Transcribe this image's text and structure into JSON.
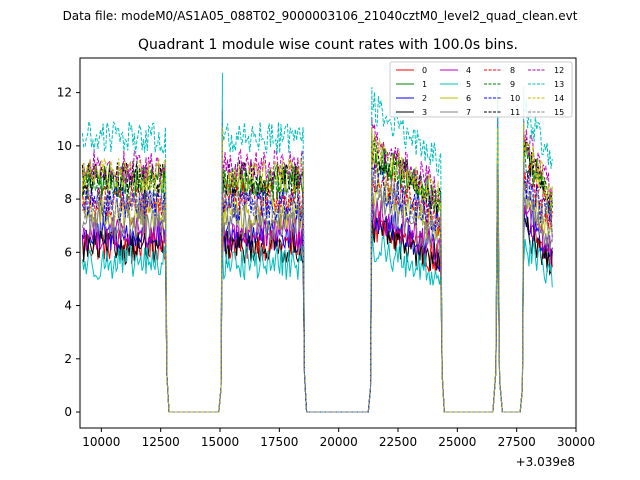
{
  "header": {
    "data_file_text": "Data file: modeM0/AS1A05_088T02_9000003106_21040cztM0_level2_quad_clean.evt"
  },
  "chart_data": {
    "type": "line",
    "title": "Quadrant 1 module wise count rates with 100.0s bins.",
    "xlabel": "",
    "ylabel": "",
    "x_offset_label": "+3.039e8",
    "xlim": [
      9100,
      30000
    ],
    "ylim": [
      -0.6,
      13.3
    ],
    "x_ticks": [
      10000,
      12500,
      15000,
      17500,
      20000,
      22500,
      25000,
      27500,
      30000
    ],
    "y_ticks": [
      0,
      2,
      4,
      6,
      8,
      10,
      12
    ],
    "legend_position": "top-right",
    "segments": [
      {
        "start": 9200,
        "end": 12700,
        "rise": false,
        "fall": true,
        "rise_peak": 1.0,
        "shape": "flat"
      },
      {
        "start": 15100,
        "end": 18500,
        "rise": true,
        "fall": true,
        "rise_peak": 1.22,
        "shape": "flat"
      },
      {
        "start": 21400,
        "end": 24300,
        "rise": true,
        "fall": true,
        "rise_peak": 1.2,
        "shape": "decay"
      },
      {
        "start": 27800,
        "end": 29000,
        "rise": true,
        "fall": false,
        "rise_peak": 1.2,
        "shape": "decay"
      }
    ],
    "spike": {
      "x": 26700,
      "peak_factor": 1.2
    },
    "series": [
      {
        "name": "0",
        "color": "#ff0000",
        "dash": "solid",
        "level": 6.3
      },
      {
        "name": "1",
        "color": "#008000",
        "dash": "solid",
        "level": 8.7
      },
      {
        "name": "2",
        "color": "#0000ff",
        "dash": "solid",
        "level": 6.6
      },
      {
        "name": "3",
        "color": "#000000",
        "dash": "solid",
        "level": 6.2
      },
      {
        "name": "4",
        "color": "#bf00bf",
        "dash": "solid",
        "level": 6.7
      },
      {
        "name": "5",
        "color": "#00bfbf",
        "dash": "solid",
        "level": 5.6
      },
      {
        "name": "6",
        "color": "#bfbf00",
        "dash": "solid",
        "level": 7.5
      },
      {
        "name": "7",
        "color": "#808080",
        "dash": "solid",
        "level": 7.1
      },
      {
        "name": "8",
        "color": "#ff0000",
        "dash": "dashed",
        "level": 8.0
      },
      {
        "name": "9",
        "color": "#008000",
        "dash": "dashed",
        "level": 8.6
      },
      {
        "name": "10",
        "color": "#0000ff",
        "dash": "dashed",
        "level": 7.8
      },
      {
        "name": "11",
        "color": "#000000",
        "dash": "dashed",
        "level": 8.8
      },
      {
        "name": "12",
        "color": "#bf00bf",
        "dash": "dashed",
        "level": 9.2
      },
      {
        "name": "13",
        "color": "#00bfbf",
        "dash": "dashed",
        "level": 10.3
      },
      {
        "name": "14",
        "color": "#bfbf00",
        "dash": "dashed",
        "level": 8.9
      },
      {
        "name": "15",
        "color": "#808080",
        "dash": "dashed",
        "level": 7.7
      }
    ]
  }
}
